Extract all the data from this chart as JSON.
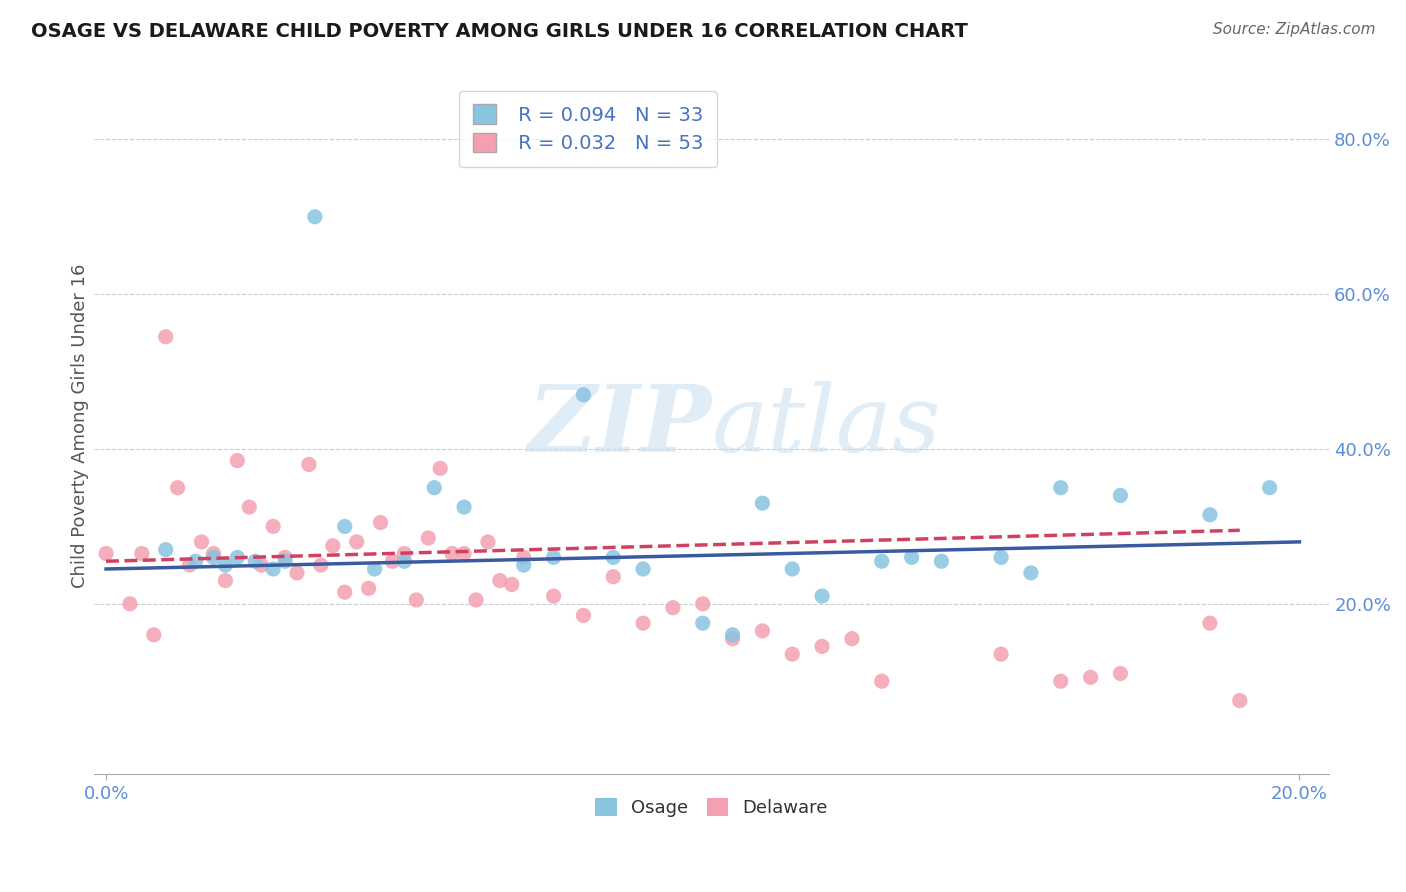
{
  "title": "OSAGE VS DELAWARE CHILD POVERTY AMONG GIRLS UNDER 16 CORRELATION CHART",
  "source": "Source: ZipAtlas.com",
  "ylabel": "Child Poverty Among Girls Under 16",
  "xlabel": "",
  "xlim": [
    -0.002,
    0.205
  ],
  "ylim": [
    -0.02,
    0.88
  ],
  "ytick_labels": [
    "20.0%",
    "40.0%",
    "60.0%",
    "80.0%"
  ],
  "ytick_values": [
    0.2,
    0.4,
    0.6,
    0.8
  ],
  "xtick_labels": [
    "0.0%",
    "20.0%"
  ],
  "xtick_values": [
    0.0,
    0.2
  ],
  "legend_osage_R": "R = 0.094",
  "legend_osage_N": "N = 33",
  "legend_delaware_R": "R = 0.032",
  "legend_delaware_N": "N = 53",
  "osage_color": "#89C4E1",
  "delaware_color": "#F4A0B0",
  "osage_line_color": "#3A5BA0",
  "delaware_line_color": "#D04060",
  "background_color": "#FFFFFF",
  "watermark_zip": "ZIP",
  "watermark_atlas": "atlas",
  "osage_x": [
    0.01,
    0.015,
    0.018,
    0.02,
    0.022,
    0.025,
    0.028,
    0.03,
    0.035,
    0.04,
    0.045,
    0.05,
    0.055,
    0.06,
    0.07,
    0.075,
    0.08,
    0.085,
    0.09,
    0.1,
    0.105,
    0.11,
    0.115,
    0.12,
    0.13,
    0.135,
    0.14,
    0.15,
    0.155,
    0.16,
    0.17,
    0.185,
    0.195
  ],
  "osage_y": [
    0.27,
    0.255,
    0.26,
    0.25,
    0.26,
    0.255,
    0.245,
    0.255,
    0.7,
    0.3,
    0.245,
    0.255,
    0.35,
    0.325,
    0.25,
    0.26,
    0.47,
    0.26,
    0.245,
    0.175,
    0.16,
    0.33,
    0.245,
    0.21,
    0.255,
    0.26,
    0.255,
    0.26,
    0.24,
    0.35,
    0.34,
    0.315,
    0.35
  ],
  "delaware_x": [
    0.0,
    0.004,
    0.006,
    0.008,
    0.01,
    0.012,
    0.014,
    0.016,
    0.018,
    0.02,
    0.022,
    0.024,
    0.026,
    0.028,
    0.03,
    0.032,
    0.034,
    0.036,
    0.038,
    0.04,
    0.042,
    0.044,
    0.046,
    0.048,
    0.05,
    0.052,
    0.054,
    0.056,
    0.058,
    0.06,
    0.062,
    0.064,
    0.066,
    0.068,
    0.07,
    0.075,
    0.08,
    0.085,
    0.09,
    0.095,
    0.1,
    0.105,
    0.11,
    0.115,
    0.12,
    0.125,
    0.13,
    0.15,
    0.16,
    0.165,
    0.17,
    0.185,
    0.19
  ],
  "delaware_y": [
    0.265,
    0.2,
    0.265,
    0.16,
    0.545,
    0.35,
    0.25,
    0.28,
    0.265,
    0.23,
    0.385,
    0.325,
    0.25,
    0.3,
    0.26,
    0.24,
    0.38,
    0.25,
    0.275,
    0.215,
    0.28,
    0.22,
    0.305,
    0.255,
    0.265,
    0.205,
    0.285,
    0.375,
    0.265,
    0.265,
    0.205,
    0.28,
    0.23,
    0.225,
    0.26,
    0.21,
    0.185,
    0.235,
    0.175,
    0.195,
    0.2,
    0.155,
    0.165,
    0.135,
    0.145,
    0.155,
    0.1,
    0.135,
    0.1,
    0.105,
    0.11,
    0.175,
    0.075
  ],
  "osage_trendline_x": [
    0.0,
    0.2
  ],
  "osage_trendline_y": [
    0.245,
    0.28
  ],
  "delaware_trendline_x": [
    0.0,
    0.19
  ],
  "delaware_trendline_y": [
    0.255,
    0.295
  ]
}
